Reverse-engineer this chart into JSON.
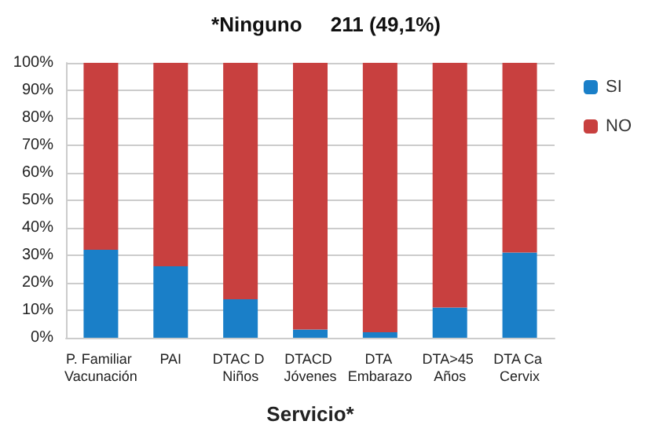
{
  "chart_data": {
    "type": "bar",
    "stacked": true,
    "title": "*Ninguno     211 (49,1%)",
    "xlabel": "Servicio*",
    "categories": [
      "P. Familiar Vacunación",
      "PAI",
      "DTAC D Niños",
      "DTACD Jóvenes",
      "DTA Embarazo",
      "DTA>45 Años",
      "DTA Ca Cervix"
    ],
    "series": [
      {
        "name": "SI",
        "color": "#1a7fc8",
        "values": [
          32,
          26,
          14,
          3,
          2,
          11,
          31
        ]
      },
      {
        "name": "NO",
        "color": "#c8403f",
        "values": [
          68,
          74,
          86,
          97,
          98,
          89,
          69
        ]
      }
    ],
    "ylim": [
      0,
      100
    ],
    "yticks": [
      {
        "value": 0,
        "label": "0%"
      },
      {
        "value": 10,
        "label": "10%"
      },
      {
        "value": 20,
        "label": "20%"
      },
      {
        "value": 30,
        "label": "30%"
      },
      {
        "value": 40,
        "label": "40%"
      },
      {
        "value": 50,
        "label": "50%"
      },
      {
        "value": 60,
        "label": "60%"
      },
      {
        "value": 70,
        "label": "70%"
      },
      {
        "value": 80,
        "label": "80%"
      },
      {
        "value": 90,
        "label": "90%"
      },
      {
        "value": 100,
        "label": "100%"
      }
    ],
    "grid": "y",
    "legend": "right"
  }
}
